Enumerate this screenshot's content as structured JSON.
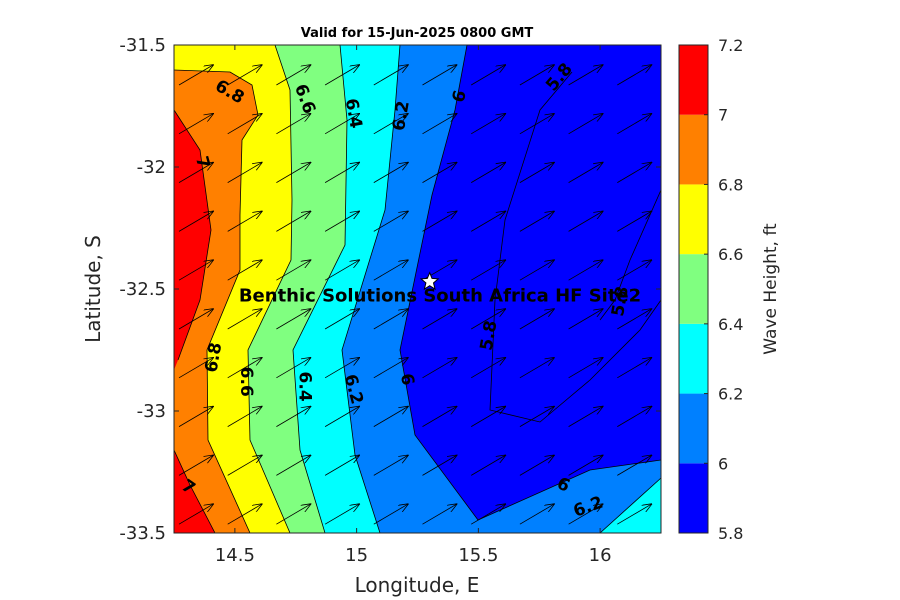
{
  "chart_data": {
    "type": "heatmap",
    "title": "Valid for 15-Jun-2025 0800 GMT",
    "xlabel": "Longitude, E",
    "ylabel": "Latitude, S",
    "xlim": [
      14.25,
      16.25
    ],
    "ylim": [
      -33.5,
      -31.5
    ],
    "xticks": [
      14.5,
      15,
      15.5,
      16
    ],
    "xtick_labels": [
      "14.5",
      "15",
      "15.5",
      "16"
    ],
    "yticks": [
      -31.5,
      -32,
      -32.5,
      -33,
      -33.5
    ],
    "ytick_labels": [
      "-31.5",
      "-32",
      "-32.5",
      "-33",
      "-33.5"
    ],
    "colorbar": {
      "label": "Wave Height, ft",
      "levels": [
        5.8,
        6.0,
        6.2,
        6.4,
        6.6,
        6.8,
        7.0,
        7.2
      ],
      "tick_labels": [
        "5.8",
        "6",
        "6.2",
        "6.4",
        "6.6",
        "6.8",
        "7",
        "7.2"
      ],
      "colors": [
        "#0000ff",
        "#0080ff",
        "#00ffff",
        "#80ff80",
        "#ffff00",
        "#ff8000",
        "#ff0000"
      ]
    },
    "contour_labels": [
      {
        "text": "6.8",
        "lon": 14.48,
        "lat": -31.69,
        "rotate": 30
      },
      {
        "text": "6.6",
        "lon": 14.79,
        "lat": -31.72,
        "rotate": 70
      },
      {
        "text": "6.4",
        "lon": 14.99,
        "lat": -31.78,
        "rotate": 80
      },
      {
        "text": "6.2",
        "lon": 15.18,
        "lat": -31.79,
        "rotate": -80
      },
      {
        "text": "6",
        "lon": 15.42,
        "lat": -31.71,
        "rotate": -75
      },
      {
        "text": "5.8",
        "lon": 15.83,
        "lat": -31.63,
        "rotate": -50
      },
      {
        "text": "7",
        "lon": 14.37,
        "lat": -31.98,
        "rotate": 75
      },
      {
        "text": "6.8",
        "lon": 14.41,
        "lat": -32.78,
        "rotate": -80
      },
      {
        "text": "6.6",
        "lon": 14.55,
        "lat": -32.88,
        "rotate": 90
      },
      {
        "text": "6.4",
        "lon": 14.79,
        "lat": -32.9,
        "rotate": 90
      },
      {
        "text": "6.2",
        "lon": 14.99,
        "lat": -32.91,
        "rotate": 75
      },
      {
        "text": "6",
        "lon": 15.21,
        "lat": -32.87,
        "rotate": 80
      },
      {
        "text": "5.8",
        "lon": 15.54,
        "lat": -32.69,
        "rotate": -80
      },
      {
        "text": "5.8",
        "lon": 16.08,
        "lat": -32.55,
        "rotate": -80
      },
      {
        "text": "7",
        "lon": 14.31,
        "lat": -33.31,
        "rotate": 35
      },
      {
        "text": "6",
        "lon": 15.85,
        "lat": -33.3,
        "rotate": 25
      },
      {
        "text": "6.2",
        "lon": 15.95,
        "lat": -33.39,
        "rotate": -20
      }
    ],
    "site": {
      "name": "Benthic Solutions South Africa HF Site2",
      "lon": 15.3,
      "lat": -32.47
    },
    "wave_direction": "toward north-east (arrows)"
  }
}
